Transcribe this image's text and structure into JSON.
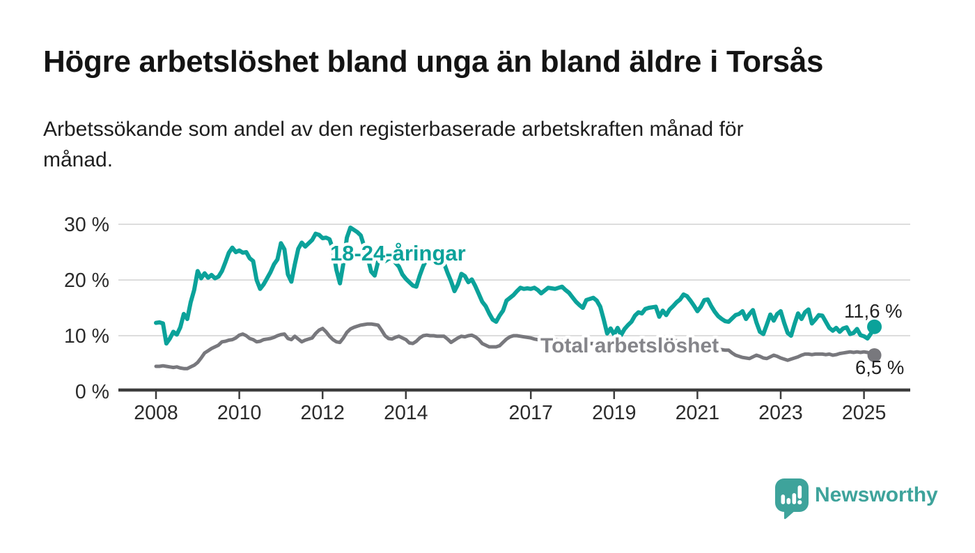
{
  "title": "Högre arbetslöshet bland unga än bland äldre i Torsås",
  "subtitle_lines": [
    "Arbetssökande som andel av den registerbaserade arbetskraften månad för",
    "månad."
  ],
  "branding": {
    "logo_text": "Newsworthy",
    "logo_color": "#3ea39b",
    "logo_icon": "bar-chart-speech-bubble-icon"
  },
  "chart_data": {
    "type": "line",
    "title": "",
    "xlabel": "",
    "ylabel": "",
    "unit": "%",
    "grid": "horizontal",
    "ylim": [
      0,
      32
    ],
    "x_start": "2008-01",
    "x_end": "2025-04",
    "x_ticks": [
      {
        "label": "2008",
        "year": 2008
      },
      {
        "label": "2010",
        "year": 2010
      },
      {
        "label": "2012",
        "year": 2012
      },
      {
        "label": "2014",
        "year": 2014
      },
      {
        "label": "2017",
        "year": 2017
      },
      {
        "label": "2019",
        "year": 2019
      },
      {
        "label": "2021",
        "year": 2021
      },
      {
        "label": "2023",
        "year": 2023
      },
      {
        "label": "2025",
        "year": 2025
      }
    ],
    "y_ticks": [
      {
        "label": "0 %",
        "value": 0
      },
      {
        "label": "10 %",
        "value": 10
      },
      {
        "label": "20 %",
        "value": 20
      },
      {
        "label": "30 %",
        "value": 30
      }
    ],
    "series": [
      {
        "name": "18-24-åringar",
        "color": "#0ba29a",
        "end_label": "11,6 %",
        "values": [
          12.3,
          12.4,
          12.2,
          8.6,
          9.5,
          10.7,
          10.2,
          11.5,
          13.9,
          13.0,
          16.0,
          18.2,
          21.6,
          20.3,
          21.2,
          20.4,
          20.9,
          20.3,
          20.6,
          21.6,
          23.2,
          24.9,
          25.8,
          25.0,
          25.3,
          24.9,
          25.0,
          23.9,
          23.4,
          20.0,
          18.4,
          19.2,
          20.3,
          21.4,
          22.8,
          23.7,
          26.6,
          25.5,
          21.0,
          19.7,
          22.8,
          25.6,
          26.7,
          26.0,
          26.6,
          27.2,
          28.3,
          28.1,
          27.5,
          27.6,
          27.3,
          25.5,
          21.8,
          19.4,
          23.0,
          27.6,
          29.4,
          29.0,
          28.6,
          28.0,
          26.0,
          24.0,
          21.5,
          20.8,
          23.3,
          23.6,
          23.4,
          23.8,
          23.9,
          23.1,
          22.4,
          21.0,
          20.2,
          19.6,
          19.0,
          18.8,
          20.8,
          22.5,
          23.7,
          24.3,
          24.0,
          23.6,
          23.3,
          23.0,
          21.3,
          19.8,
          18.0,
          19.2,
          21.1,
          20.7,
          19.6,
          20.1,
          18.9,
          17.5,
          16.1,
          15.3,
          14.0,
          12.9,
          12.5,
          13.6,
          14.5,
          16.3,
          16.8,
          17.3,
          18.0,
          18.6,
          18.4,
          18.5,
          18.4,
          18.6,
          18.2,
          17.6,
          18.1,
          18.6,
          18.5,
          18.4,
          18.6,
          18.8,
          18.2,
          17.7,
          16.9,
          16.1,
          15.5,
          15.0,
          16.4,
          16.6,
          16.8,
          16.3,
          15.2,
          12.9,
          10.4,
          11.3,
          10.2,
          11.4,
          10.1,
          11.2,
          11.9,
          12.5,
          13.6,
          14.2,
          14.0,
          14.8,
          15.0,
          15.1,
          15.2,
          13.4,
          14.5,
          13.7,
          14.7,
          15.3,
          16.0,
          16.5,
          17.4,
          17.1,
          16.3,
          15.4,
          14.4,
          15.2,
          16.4,
          16.5,
          15.3,
          14.3,
          13.5,
          13.0,
          12.6,
          12.5,
          13.1,
          13.7,
          13.9,
          14.4,
          13.0,
          13.9,
          14.6,
          12.4,
          10.7,
          10.3,
          12.0,
          13.8,
          12.7,
          13.9,
          14.4,
          12.3,
          10.5,
          10.0,
          12.1,
          14.0,
          13.0,
          14.2,
          14.7,
          12.2,
          12.9,
          13.7,
          13.6,
          12.5,
          11.4,
          10.9,
          11.4,
          10.7,
          11.3,
          11.5,
          10.3,
          10.5,
          11.2,
          10.1,
          9.9,
          9.5,
          10.4,
          11.6
        ]
      },
      {
        "name": "Total arbetslöshet",
        "color": "#78787d",
        "end_label": "6,5 %",
        "values": [
          4.5,
          4.5,
          4.6,
          4.5,
          4.4,
          4.3,
          4.4,
          4.2,
          4.1,
          4.1,
          4.4,
          4.7,
          5.2,
          6.0,
          6.9,
          7.3,
          7.7,
          8.0,
          8.3,
          8.9,
          9.0,
          9.2,
          9.3,
          9.6,
          10.1,
          10.3,
          10.0,
          9.5,
          9.3,
          8.9,
          9.0,
          9.3,
          9.4,
          9.5,
          9.7,
          10.0,
          10.2,
          10.3,
          9.5,
          9.3,
          9.9,
          9.4,
          8.9,
          9.2,
          9.4,
          9.6,
          10.4,
          11.0,
          11.3,
          10.7,
          9.9,
          9.3,
          8.9,
          8.8,
          9.6,
          10.6,
          11.2,
          11.5,
          11.7,
          11.9,
          12.0,
          12.1,
          12.1,
          12.0,
          11.9,
          11.0,
          10.0,
          9.5,
          9.4,
          9.7,
          9.9,
          9.6,
          9.3,
          8.7,
          8.6,
          9.0,
          9.6,
          10.0,
          10.1,
          10.0,
          10.0,
          9.9,
          9.9,
          9.9,
          9.4,
          8.8,
          9.2,
          9.6,
          9.9,
          9.8,
          10.0,
          10.1,
          9.8,
          9.3,
          8.6,
          8.3,
          8.0,
          8.0,
          8.0,
          8.2,
          8.8,
          9.4,
          9.8,
          10.0,
          10.0,
          9.9,
          9.8,
          9.7,
          9.6,
          9.4,
          9.3,
          9.2,
          9.2,
          9.3,
          9.4,
          9.3,
          9.2,
          9.1,
          9.0,
          8.9,
          8.8,
          8.7,
          8.6,
          8.5,
          8.5,
          8.6,
          8.6,
          8.5,
          8.3,
          8.1,
          8.0,
          8.0,
          7.9,
          7.9,
          7.8,
          7.8,
          7.9,
          8.0,
          8.2,
          8.3,
          8.3,
          8.4,
          8.5,
          8.5,
          8.6,
          8.6,
          8.8,
          9.0,
          9.1,
          9.2,
          9.1,
          9.0,
          8.8,
          8.6,
          8.4,
          8.2,
          8.1,
          8.0,
          7.9,
          7.8,
          7.7,
          7.6,
          7.5,
          7.5,
          7.4,
          7.4,
          6.9,
          6.5,
          6.3,
          6.1,
          6.0,
          5.9,
          6.2,
          6.5,
          6.3,
          6.0,
          5.9,
          6.2,
          6.5,
          6.3,
          6.0,
          5.8,
          5.6,
          5.8,
          6.0,
          6.2,
          6.5,
          6.7,
          6.7,
          6.6,
          6.7,
          6.7,
          6.7,
          6.6,
          6.7,
          6.5,
          6.6,
          6.8,
          6.9,
          7.0,
          7.1,
          7.0,
          7.1,
          7.0,
          7.1,
          7.0,
          6.8,
          6.5
        ]
      }
    ]
  }
}
